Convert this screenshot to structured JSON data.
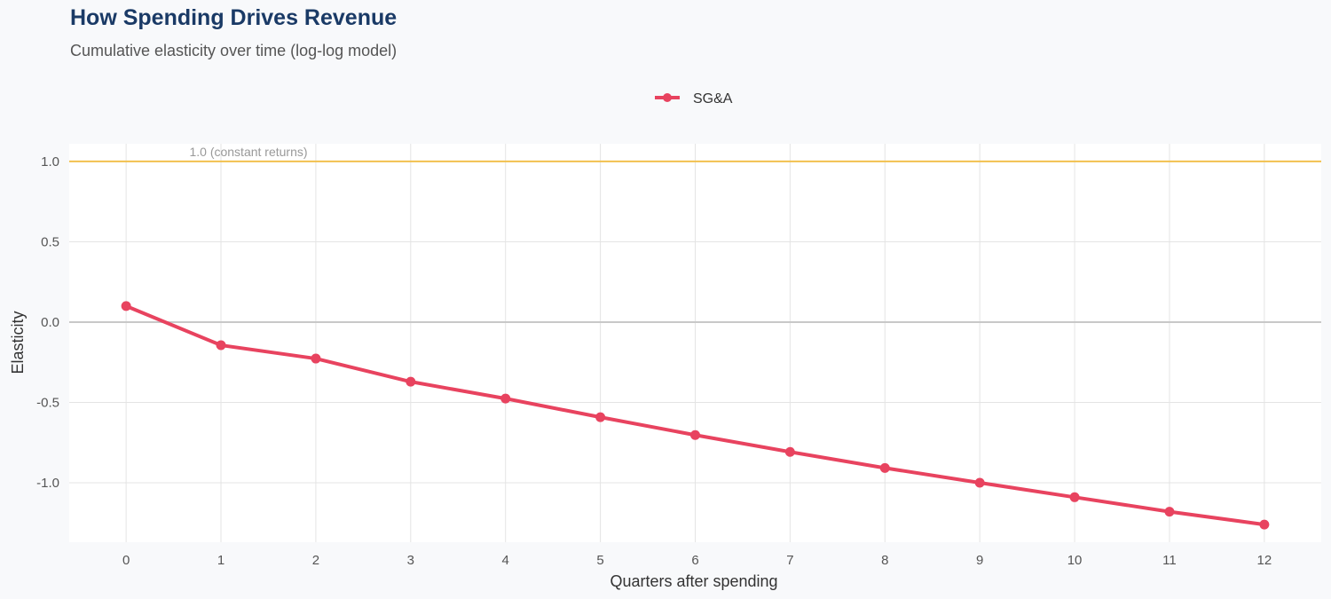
{
  "chart_data": {
    "type": "line",
    "title": "How Spending Drives Revenue",
    "subtitle": "Cumulative elasticity over time (log-log model)",
    "xlabel": "Quarters after spending",
    "ylabel": "Elasticity",
    "x": [
      0,
      1,
      2,
      3,
      4,
      5,
      6,
      7,
      8,
      9,
      10,
      11,
      12
    ],
    "series": [
      {
        "name": "SG&A",
        "color": "#e8435f",
        "values": [
          0.1,
          -0.144,
          -0.227,
          -0.371,
          -0.476,
          -0.592,
          -0.703,
          -0.808,
          -0.908,
          -1.0,
          -1.09,
          -1.18,
          -1.26
        ]
      }
    ],
    "xlim": [
      -0.6,
      12.6
    ],
    "ylim": [
      -1.37,
      1.11
    ],
    "xticks": [
      "0",
      "1",
      "2",
      "3",
      "4",
      "5",
      "6",
      "7",
      "8",
      "9",
      "10",
      "11",
      "12"
    ],
    "yticks": [
      {
        "v": 1.0,
        "label": "1.0"
      },
      {
        "v": 0.5,
        "label": "0.5"
      },
      {
        "v": 0.0,
        "label": "0.0"
      },
      {
        "v": -0.5,
        "label": "-0.5"
      },
      {
        "v": -1.0,
        "label": "-1.0"
      }
    ],
    "reference_line": {
      "y": 1.0,
      "label": "1.0 (constant returns)",
      "color": "#f2c14e"
    },
    "zero_line_color": "#c8c8c8",
    "grid": true,
    "legend_position": "top"
  }
}
